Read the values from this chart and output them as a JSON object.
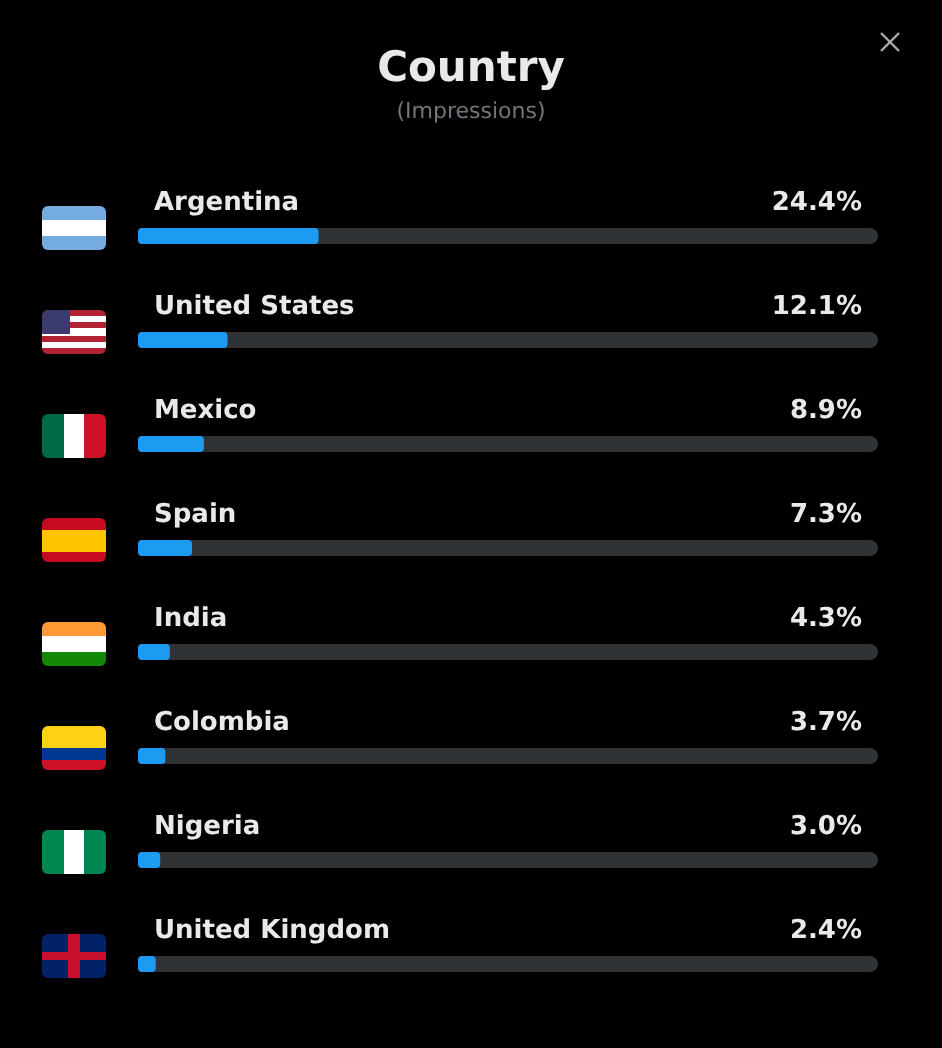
{
  "chart_data": {
    "type": "bar",
    "orientation": "horizontal",
    "title": "Country",
    "subtitle": "(Impressions)",
    "categories": [
      "Argentina",
      "United States",
      "Mexico",
      "Spain",
      "India",
      "Colombia",
      "Nigeria",
      "United Kingdom"
    ],
    "values": [
      24.4,
      12.1,
      8.9,
      7.3,
      4.3,
      3.7,
      3.0,
      2.4
    ],
    "value_labels": [
      "24.4%",
      "12.1%",
      "8.9%",
      "7.3%",
      "4.3%",
      "3.7%",
      "3.0%",
      "2.4%"
    ],
    "color": "#1d9bf0",
    "xlim": [
      0,
      100
    ],
    "tick_labels": "y",
    "grid": false
  }
}
